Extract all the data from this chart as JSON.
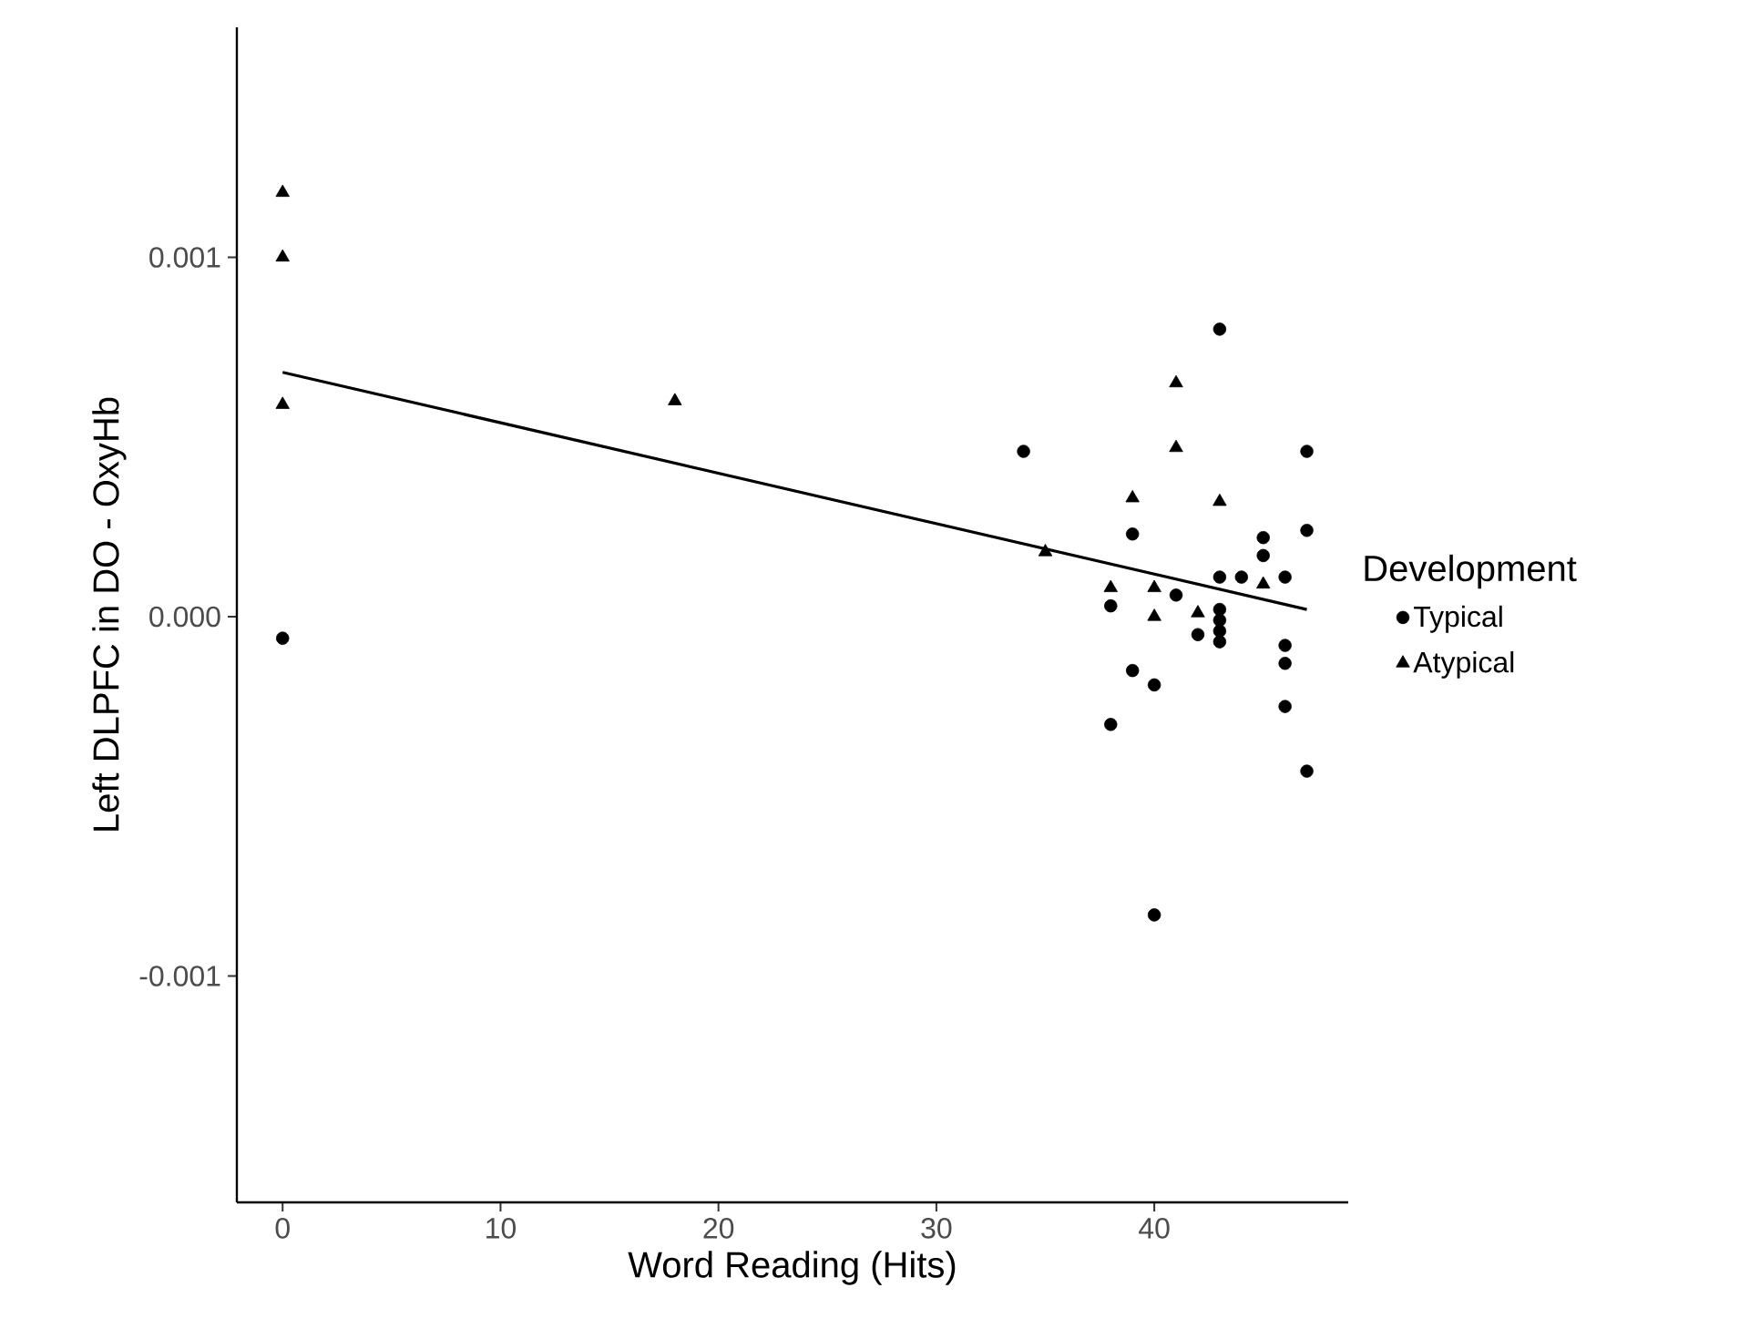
{
  "chart_data": {
    "type": "scatter",
    "xlabel": "Word Reading (Hits)",
    "ylabel": "Left DLPFC in DO - OxyHb",
    "legend_title": "Development",
    "xlim": [
      -2.1,
      48.9
    ],
    "ylim": [
      -0.00163,
      0.00164
    ],
    "xticks": [
      0,
      10,
      20,
      30,
      40
    ],
    "yticks": [
      -0.001,
      {
        "value": 0,
        "label": "0.000"
      },
      0.001
    ],
    "grid": false,
    "legend": "right",
    "series": [
      {
        "name": "Typical",
        "color": "#000000",
        "marker": "circle",
        "x": [
          0,
          34,
          43,
          38,
          38,
          39,
          39,
          40,
          40,
          41,
          42,
          43,
          43,
          43,
          43,
          43,
          44,
          45,
          45,
          46,
          46,
          46,
          46,
          47,
          47,
          47
        ],
        "values": [
          -6e-05,
          0.00046,
          0.0008,
          3e-05,
          -0.0003,
          0.00023,
          -0.00015,
          -0.00019,
          -0.00083,
          6e-05,
          -5e-05,
          0.00011,
          2e-05,
          -1e-05,
          -4e-05,
          -7e-05,
          0.00011,
          0.00022,
          0.00017,
          0.00011,
          -8e-05,
          -0.00013,
          -0.00025,
          0.00046,
          0.00024,
          -0.00043
        ]
      },
      {
        "name": "Atypical",
        "color": "#000000",
        "marker": "triangle",
        "x": [
          0,
          0,
          0,
          18,
          35,
          38,
          39,
          40,
          40,
          41,
          41,
          42,
          43,
          45
        ],
        "values": [
          0.00118,
          0.001,
          0.00059,
          0.0006,
          0.00018,
          8e-05,
          0.00033,
          8e-05,
          0,
          0.00065,
          0.00047,
          1e-05,
          0.00032,
          9e-05
        ]
      },
      {
        "type": "line",
        "color": "#000000",
        "marker": "none",
        "x": [
          0,
          47
        ],
        "values": [
          0.00068,
          2e-05
        ]
      }
    ]
  }
}
